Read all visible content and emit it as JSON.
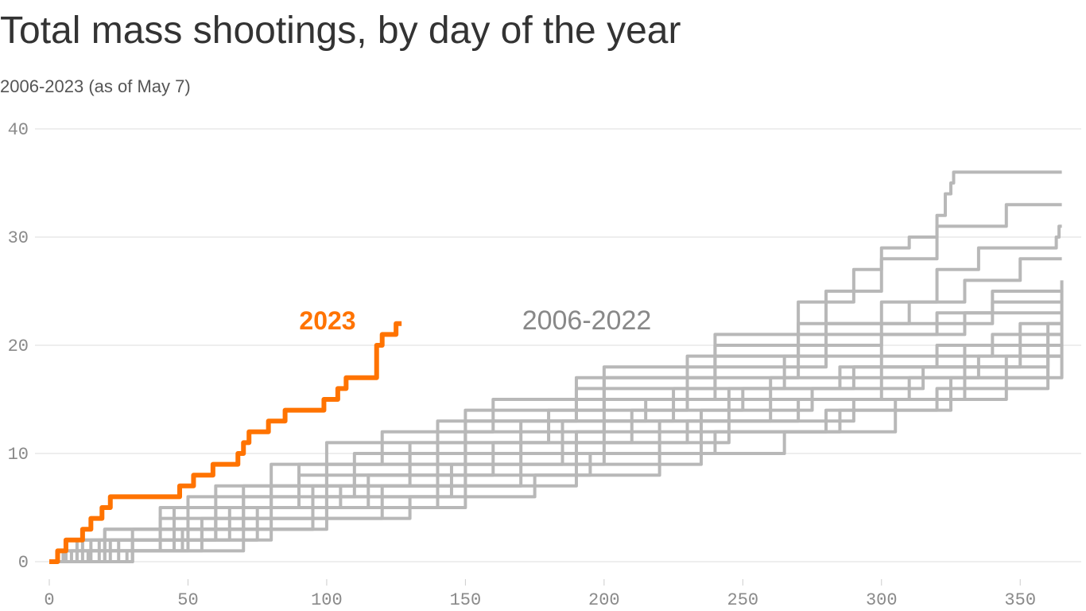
{
  "chart_data": {
    "type": "step-line",
    "title": "Total mass shootings, by day of the year",
    "subtitle": "2006-2023 (as of May 7)",
    "annotations": [
      {
        "text": "2023",
        "color": "#ff7300"
      },
      {
        "text": "2006-2022",
        "color": "#888888"
      }
    ],
    "xlim": [
      0,
      372
    ],
    "ylim": [
      0,
      40
    ],
    "xticks": [
      0,
      50,
      100,
      150,
      200,
      250,
      300,
      350
    ],
    "yticks": [
      0,
      10,
      20,
      30,
      40
    ],
    "grid": true,
    "series": [
      {
        "color": "#b8b8b8",
        "x": [
          0,
          10,
          40,
          80,
          120,
          160,
          200,
          240,
          270,
          290,
          300,
          310,
          320,
          323,
          325,
          326,
          365
        ],
        "values": [
          0,
          2,
          5,
          9,
          12,
          15,
          18,
          20,
          24,
          27,
          29,
          30,
          32,
          34,
          35,
          36,
          36
        ]
      },
      {
        "color": "#b8b8b8",
        "x": [
          0,
          20,
          60,
          100,
          150,
          200,
          240,
          280,
          300,
          320,
          345,
          365
        ],
        "values": [
          0,
          3,
          7,
          11,
          14,
          17,
          21,
          25,
          28,
          31,
          33,
          33
        ]
      },
      {
        "color": "#b8b8b8",
        "x": [
          0,
          30,
          70,
          110,
          150,
          190,
          230,
          270,
          300,
          320,
          335,
          363,
          364,
          365
        ],
        "values": [
          0,
          3,
          7,
          10,
          13,
          17,
          19,
          22,
          24,
          27,
          29,
          30,
          31,
          31
        ]
      },
      {
        "color": "#b8b8b8",
        "x": [
          0,
          15,
          50,
          90,
          140,
          190,
          240,
          280,
          310,
          330,
          350,
          365
        ],
        "values": [
          0,
          2,
          6,
          9,
          13,
          16,
          19,
          22,
          24,
          26,
          28,
          28
        ]
      },
      {
        "color": "#b8b8b8",
        "x": [
          0,
          25,
          60,
          100,
          150,
          200,
          240,
          280,
          320,
          340,
          365
        ],
        "values": [
          0,
          2,
          5,
          9,
          12,
          15,
          18,
          21,
          23,
          25,
          26
        ]
      },
      {
        "color": "#b8b8b8",
        "x": [
          0,
          8,
          45,
          90,
          130,
          180,
          230,
          270,
          300,
          340,
          365
        ],
        "values": [
          0,
          1,
          5,
          8,
          11,
          14,
          17,
          20,
          22,
          24,
          25
        ]
      },
      {
        "color": "#b8b8b8",
        "x": [
          0,
          12,
          55,
          95,
          140,
          185,
          225,
          265,
          300,
          330,
          365
        ],
        "values": [
          0,
          2,
          4,
          7,
          10,
          13,
          16,
          19,
          21,
          23,
          24
        ]
      },
      {
        "color": "#b8b8b8",
        "x": [
          0,
          20,
          70,
          110,
          150,
          200,
          245,
          285,
          320,
          350,
          365
        ],
        "values": [
          0,
          3,
          6,
          8,
          11,
          13,
          16,
          18,
          20,
          22,
          23
        ]
      },
      {
        "color": "#b8b8b8",
        "x": [
          0,
          30,
          75,
          115,
          160,
          210,
          250,
          290,
          330,
          360,
          365
        ],
        "values": [
          0,
          2,
          5,
          8,
          11,
          14,
          16,
          18,
          20,
          22,
          22
        ]
      },
      {
        "color": "#b8b8b8",
        "x": [
          0,
          5,
          40,
          80,
          130,
          170,
          215,
          260,
          300,
          340,
          365
        ],
        "values": [
          0,
          1,
          4,
          7,
          10,
          13,
          15,
          17,
          19,
          21,
          22
        ]
      },
      {
        "color": "#b8b8b8",
        "x": [
          0,
          18,
          60,
          100,
          145,
          190,
          235,
          275,
          315,
          350,
          365
        ],
        "values": [
          0,
          2,
          4,
          6,
          9,
          12,
          14,
          16,
          18,
          20,
          21
        ]
      },
      {
        "color": "#b8b8b8",
        "x": [
          0,
          28,
          70,
          120,
          170,
          220,
          260,
          300,
          335,
          360,
          365
        ],
        "values": [
          0,
          1,
          4,
          7,
          10,
          13,
          15,
          17,
          19,
          21,
          21
        ]
      },
      {
        "color": "#b8b8b8",
        "x": [
          0,
          10,
          50,
          95,
          140,
          185,
          230,
          270,
          310,
          345,
          365
        ],
        "values": [
          0,
          1,
          3,
          6,
          9,
          11,
          13,
          15,
          17,
          19,
          20
        ]
      },
      {
        "color": "#b8b8b8",
        "x": [
          0,
          22,
          65,
          105,
          150,
          200,
          245,
          290,
          330,
          360,
          365
        ],
        "values": [
          0,
          2,
          5,
          7,
          9,
          11,
          13,
          15,
          18,
          20,
          20
        ]
      },
      {
        "color": "#b8b8b8",
        "x": [
          0,
          14,
          55,
          100,
          150,
          195,
          240,
          285,
          325,
          360,
          365
        ],
        "values": [
          0,
          1,
          3,
          5,
          8,
          10,
          12,
          14,
          17,
          19,
          19
        ]
      },
      {
        "color": "#b8b8b8",
        "x": [
          0,
          30,
          80,
          130,
          175,
          220,
          265,
          305,
          345,
          365
        ],
        "values": [
          0,
          2,
          4,
          6,
          8,
          10,
          12,
          15,
          17,
          19
        ]
      },
      {
        "color": "#b8b8b8",
        "x": [
          0,
          6,
          48,
          95,
          140,
          190,
          235,
          280,
          320,
          360,
          365
        ],
        "values": [
          0,
          1,
          3,
          5,
          7,
          9,
          12,
          14,
          16,
          19,
          19
        ]
      },
      {
        "name": "2023",
        "color": "#ff7300",
        "x": [
          0,
          3,
          6,
          12,
          15,
          19,
          22,
          47,
          52,
          59,
          68,
          70,
          72,
          79,
          85,
          99,
          104,
          107,
          118,
          120,
          122,
          125,
          127
        ],
        "values": [
          0,
          1,
          2,
          3,
          4,
          5,
          6,
          7,
          8,
          9,
          10,
          11,
          12,
          13,
          14,
          15,
          16,
          17,
          20,
          21,
          21,
          22,
          22
        ]
      }
    ]
  }
}
